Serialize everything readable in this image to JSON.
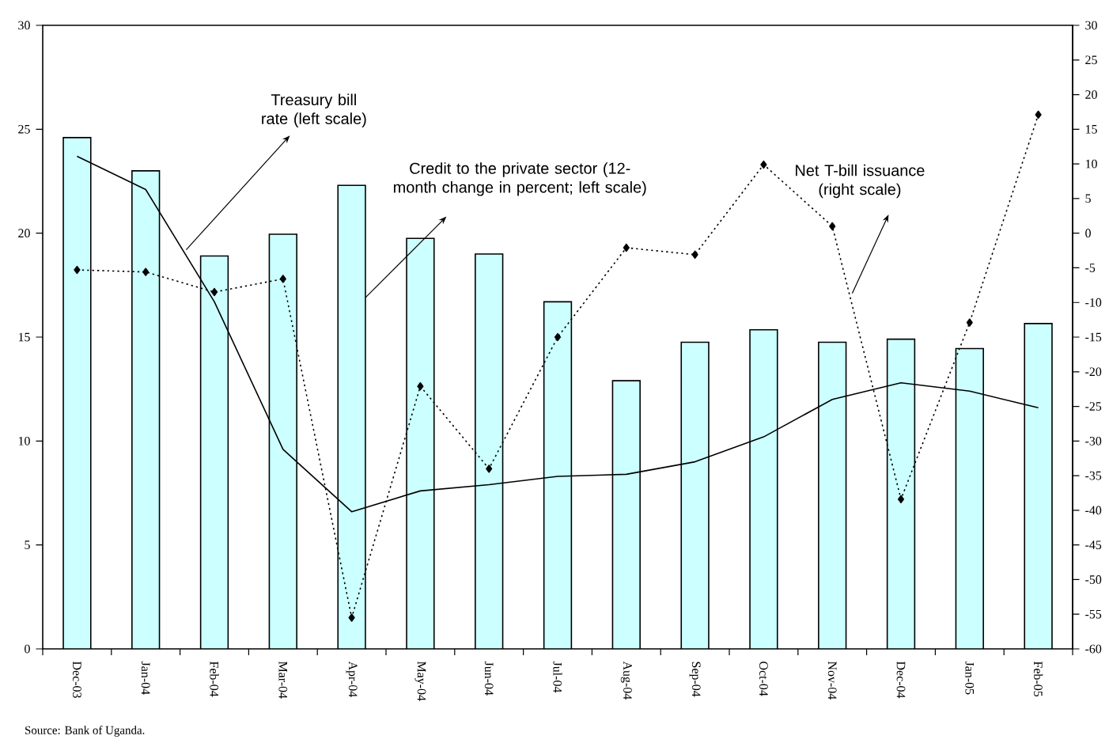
{
  "chart_data": {
    "type": "bar",
    "categories": [
      "Dec-03",
      "Jan-04",
      "Feb-04",
      "Mar-04",
      "Apr-04",
      "May-04",
      "Jun-04",
      "Jul-04",
      "Aug-04",
      "Sep-04",
      "Oct-04",
      "Nov-04",
      "Dec-04",
      "Jan-05",
      "Feb-05"
    ],
    "series": [
      {
        "name": "Credit to the private sector (12-month change in percent; left scale)",
        "color": "#ccffff",
        "values": [
          24.6,
          23.0,
          18.9,
          19.95,
          22.3,
          19.75,
          19.0,
          16.7,
          12.9,
          14.75,
          15.35,
          14.75,
          14.9,
          14.45,
          15.65
        ]
      },
      {
        "name": "Treasury bill rate (left scale)",
        "type": "line",
        "color": "#000000",
        "marker": "none",
        "line_style": "solid",
        "values": [
          23.7,
          22.1,
          16.7,
          9.6,
          6.6,
          7.6,
          7.9,
          8.3,
          8.4,
          9.0,
          10.2,
          12.0,
          12.8,
          12.4,
          11.6
        ]
      },
      {
        "name": "Net T-bill issuance (right scale)",
        "type": "line",
        "axis": "y2",
        "color": "#000000",
        "marker": "diamond",
        "line_style": "dotted",
        "values": [
          -5.3,
          -5.6,
          -8.5,
          -6.6,
          -55.5,
          -22.1,
          -34.0,
          -15.0,
          -2.1,
          -3.1,
          9.9,
          1.0,
          -38.4,
          -12.9,
          17.1
        ]
      }
    ],
    "ylim": [
      0,
      30
    ],
    "yticks": [
      0,
      5,
      10,
      15,
      20,
      25,
      30
    ],
    "y2lim": [
      -60,
      30
    ],
    "y2ticks": [
      -60,
      -55,
      -50,
      -45,
      -40,
      -35,
      -30,
      -25,
      -20,
      -15,
      -10,
      -5,
      0,
      5,
      10,
      15,
      20,
      25,
      30
    ],
    "annotations": [
      "Source: Bank of Uganda."
    ]
  }
}
